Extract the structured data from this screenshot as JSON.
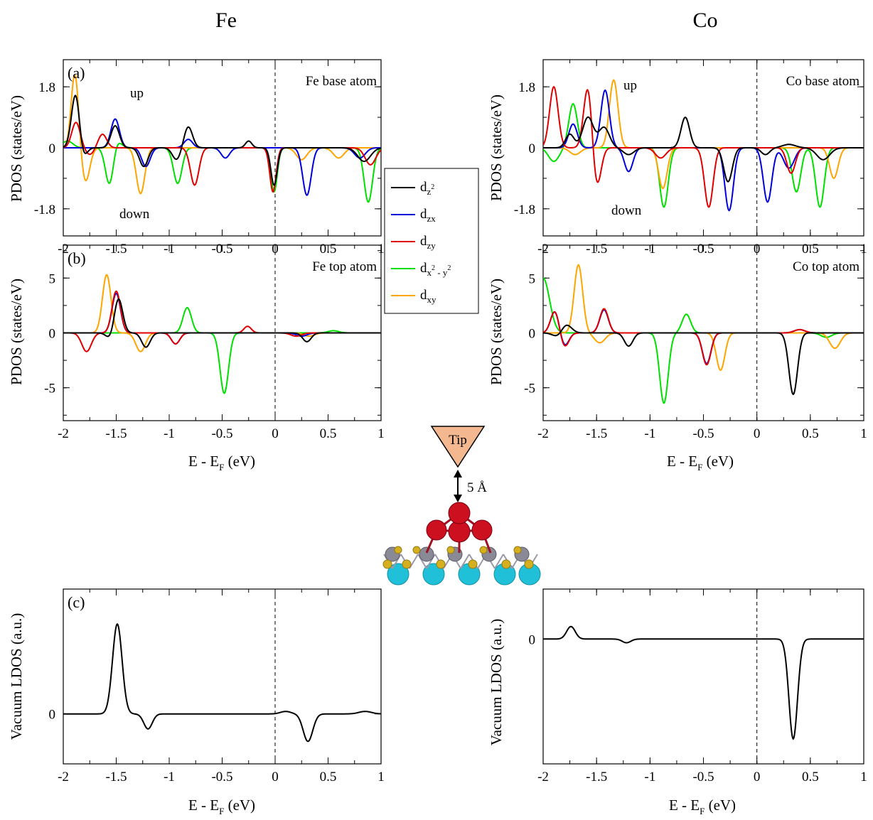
{
  "titles": {
    "fe": "Fe",
    "co": "Co"
  },
  "units": {
    "pdos_ylabel": "PDOS (states/eV)",
    "ldos_ylabel": "Vacuum LDOS (a.u.)",
    "xlabel_main": "E - E",
    "xlabel_sub": "F",
    "xlabel_unit": " (eV)"
  },
  "notes": {
    "up": "up",
    "down": "down",
    "tip": "Tip",
    "distance": "5 Å"
  },
  "legend": [
    {
      "main": "d",
      "sub": "z",
      "sup": "2",
      "color": "#000000"
    },
    {
      "main": "d",
      "sub": "zx",
      "color": "#0000dd"
    },
    {
      "main": "d",
      "sub": "zy",
      "color": "#e00000"
    },
    {
      "main": "d",
      "sub": "x",
      "sup": "2",
      "sub2": " - y",
      "sup2": "2",
      "color": "#00e000"
    },
    {
      "main": "d",
      "sub": "xy",
      "color": "#ffa500"
    }
  ],
  "colors": {
    "dz2": "#000000",
    "dzx": "#0000dd",
    "dzy": "#e00000",
    "dx2y2": "#00e000",
    "dxy": "#ffa500",
    "atom_o": "#cc1020",
    "atom_s": "#d4b020",
    "atom_m": "#8a8a96",
    "atom_sub": "#20c0d8",
    "tip": "#f4b890"
  },
  "chart_data": [
    {
      "id": "fe_a",
      "type": "line",
      "tag": "(a)",
      "atom_label": "Fe base atom",
      "xlim": [
        -2,
        1
      ],
      "ylim": [
        -2.6,
        2.6
      ],
      "yticks": [
        -1.8,
        0,
        1.8
      ],
      "yticklabels": [
        "-1.8",
        "0",
        "1.8"
      ],
      "xticks": [
        -2,
        -1.5,
        -1,
        -0.5,
        0,
        0.5,
        1
      ],
      "xticklabels": [
        "-2",
        "-1.5",
        "-1",
        "-0.5",
        "0",
        "0.5",
        "1"
      ],
      "series": [
        {
          "key": "dz2",
          "peaks": [
            [
              -1.88,
              1.75,
              0.04
            ],
            [
              -1.51,
              0.65,
              0.04
            ],
            [
              -0.82,
              0.62,
              0.04
            ],
            [
              -0.25,
              0.2,
              0.03
            ],
            [
              -1.83,
              -0.5,
              0.04
            ],
            [
              -1.24,
              -0.55,
              0.04
            ],
            [
              -0.93,
              -0.35,
              0.04
            ],
            [
              -0.01,
              -1.1,
              0.03
            ],
            [
              0.84,
              -0.4,
              0.06
            ]
          ]
        },
        {
          "key": "dzx",
          "peaks": [
            [
              -1.51,
              0.85,
              0.04
            ],
            [
              -0.82,
              0.25,
              0.04
            ],
            [
              -1.22,
              -0.55,
              0.04
            ],
            [
              -0.47,
              -0.3,
              0.04
            ],
            [
              0.3,
              -1.4,
              0.04
            ],
            [
              0.8,
              -0.3,
              0.05
            ]
          ]
        },
        {
          "key": "dzy",
          "peaks": [
            [
              -1.88,
              0.75,
              0.04
            ],
            [
              -1.63,
              0.4,
              0.04
            ],
            [
              -1.75,
              -0.2,
              0.04
            ],
            [
              -0.76,
              -1.1,
              0.04
            ],
            [
              -0.02,
              -1.3,
              0.03
            ],
            [
              0.9,
              -0.5,
              0.05
            ]
          ]
        },
        {
          "key": "dx2y2",
          "peaks": [
            [
              -1.53,
              0.5,
              0.05
            ],
            [
              -1.96,
              0.2,
              0.05
            ],
            [
              -1.56,
              -1.45,
              0.04
            ],
            [
              -0.92,
              -1.05,
              0.04
            ],
            [
              -0.01,
              -1.3,
              0.03
            ],
            [
              0.88,
              -1.6,
              0.04
            ]
          ]
        },
        {
          "key": "dxy",
          "peaks": [
            [
              -1.89,
              2.2,
              0.035
            ],
            [
              -1.79,
              -1.0,
              0.04
            ],
            [
              -1.27,
              -1.35,
              0.04
            ],
            [
              0.25,
              -0.35,
              0.05
            ],
            [
              0.6,
              -0.3,
              0.05
            ]
          ]
        }
      ]
    },
    {
      "id": "co_a",
      "type": "line",
      "atom_label": "Co base atom",
      "xlim": [
        -2,
        1
      ],
      "ylim": [
        -2.6,
        2.6
      ],
      "yticks": [
        -1.8,
        0,
        1.8
      ],
      "yticklabels": [
        "-1.8",
        "0",
        "1.8"
      ],
      "xticks": [
        -2,
        -1.5,
        -1,
        -0.5,
        0,
        0.5,
        1
      ],
      "xticklabels": [
        "-2",
        "-1.5",
        "-1",
        "-0.5",
        "0",
        "0.5",
        "1"
      ],
      "series": [
        {
          "key": "dz2",
          "peaks": [
            [
              -1.58,
              0.9,
              0.05
            ],
            [
              -1.43,
              0.6,
              0.05
            ],
            [
              -1.75,
              0.4,
              0.04
            ],
            [
              -0.67,
              0.9,
              0.04
            ],
            [
              0.3,
              0.1,
              0.06
            ],
            [
              -1.2,
              -0.2,
              0.05
            ],
            [
              -0.27,
              -1.0,
              0.04
            ],
            [
              0.08,
              -0.2,
              0.04
            ],
            [
              0.62,
              -0.35,
              0.06
            ]
          ]
        },
        {
          "key": "dzx",
          "peaks": [
            [
              -1.42,
              1.7,
              0.04
            ],
            [
              -1.72,
              0.7,
              0.04
            ],
            [
              -1.2,
              -0.7,
              0.04
            ],
            [
              -0.26,
              -1.85,
              0.04
            ],
            [
              0.1,
              -1.6,
              0.04
            ],
            [
              0.3,
              -0.6,
              0.05
            ]
          ]
        },
        {
          "key": "dzy",
          "peaks": [
            [
              -1.9,
              1.8,
              0.04
            ],
            [
              -1.58,
              1.85,
              0.04
            ],
            [
              -1.5,
              -1.2,
              0.04
            ],
            [
              -0.45,
              -1.75,
              0.04
            ],
            [
              0.32,
              -0.75,
              0.04
            ],
            [
              -0.9,
              -0.3,
              0.05
            ]
          ]
        },
        {
          "key": "dx2y2",
          "peaks": [
            [
              -1.72,
              1.3,
              0.04
            ],
            [
              -0.87,
              -1.75,
              0.04
            ],
            [
              0.37,
              -1.3,
              0.04
            ],
            [
              0.59,
              -1.75,
              0.04
            ],
            [
              -1.9,
              -0.4,
              0.05
            ]
          ]
        },
        {
          "key": "dxy",
          "peaks": [
            [
              -1.34,
              2.0,
              0.04
            ],
            [
              -0.88,
              -1.2,
              0.04
            ],
            [
              0.72,
              -0.9,
              0.04
            ],
            [
              -1.7,
              -0.2,
              0.05
            ]
          ]
        }
      ]
    },
    {
      "id": "fe_b",
      "type": "line",
      "tag": "(b)",
      "atom_label": "Fe top atom",
      "xlim": [
        -2,
        1
      ],
      "ylim": [
        -8,
        8
      ],
      "yticks": [
        -5,
        0,
        5
      ],
      "yticklabels": [
        "-5",
        "0",
        "5"
      ],
      "xticks": [
        -2,
        -1.5,
        -1,
        -0.5,
        0,
        0.5,
        1
      ],
      "xticklabels": [
        "-2",
        "-1.5",
        "-1",
        "-0.5",
        "0",
        "0.5",
        "1"
      ],
      "series": [
        {
          "key": "dz2",
          "peaks": [
            [
              -1.48,
              3.2,
              0.04
            ],
            [
              -1.22,
              -1.3,
              0.04
            ],
            [
              -1.55,
              -0.6,
              0.04
            ],
            [
              0.3,
              -0.8,
              0.04
            ]
          ]
        },
        {
          "key": "dzx",
          "peaks": [
            [
              -1.5,
              3.6,
              0.04
            ],
            [
              -0.94,
              -1.0,
              0.04
            ],
            [
              0.25,
              -0.3,
              0.05
            ]
          ]
        },
        {
          "key": "dzy",
          "peaks": [
            [
              -1.5,
              3.8,
              0.04
            ],
            [
              -1.78,
              -1.7,
              0.045
            ],
            [
              -0.94,
              -1.0,
              0.04
            ],
            [
              -0.26,
              0.6,
              0.035
            ],
            [
              0.2,
              -0.3,
              0.05
            ]
          ]
        },
        {
          "key": "dx2y2",
          "peaks": [
            [
              -0.83,
              2.3,
              0.04
            ],
            [
              -0.48,
              -5.5,
              0.04
            ],
            [
              0.55,
              0.2,
              0.05
            ]
          ]
        },
        {
          "key": "dxy",
          "peaks": [
            [
              -1.59,
              5.3,
              0.04
            ],
            [
              -1.27,
              -1.7,
              0.045
            ],
            [
              0.32,
              -0.3,
              0.05
            ]
          ]
        }
      ]
    },
    {
      "id": "co_b",
      "type": "line",
      "atom_label": "Co top atom",
      "xlim": [
        -2,
        1
      ],
      "ylim": [
        -8,
        8
      ],
      "yticks": [
        -5,
        0,
        5
      ],
      "yticklabels": [
        "-5",
        "0",
        "5"
      ],
      "xticks": [
        -2,
        -1.5,
        -1,
        -0.5,
        0,
        0.5,
        1
      ],
      "xticklabels": [
        "-2",
        "-1.5",
        "-1",
        "-0.5",
        "0",
        "0.5",
        "1"
      ],
      "series": [
        {
          "key": "dz2",
          "peaks": [
            [
              -1.79,
              0.9,
              0.05
            ],
            [
              -1.2,
              -1.2,
              0.04
            ],
            [
              -1.85,
              -0.5,
              0.05
            ],
            [
              0.34,
              -5.6,
              0.04
            ]
          ]
        },
        {
          "key": "dzx",
          "peaks": [
            [
              -1.89,
              2.0,
              0.04
            ],
            [
              -1.43,
              2.1,
              0.04
            ],
            [
              -1.8,
              -1.2,
              0.04
            ],
            [
              -0.47,
              -2.8,
              0.04
            ],
            [
              0.4,
              0.3,
              0.05
            ]
          ]
        },
        {
          "key": "dzy",
          "peaks": [
            [
              -1.89,
              2.0,
              0.04
            ],
            [
              -1.43,
              2.2,
              0.04
            ],
            [
              -1.8,
              -1.3,
              0.04
            ],
            [
              -0.47,
              -2.9,
              0.04
            ],
            [
              0.4,
              0.3,
              0.05
            ]
          ]
        },
        {
          "key": "dx2y2",
          "peaks": [
            [
              -2.0,
              5.0,
              0.06
            ],
            [
              -0.87,
              -6.4,
              0.04
            ],
            [
              -0.66,
              1.7,
              0.04
            ],
            [
              0.65,
              -0.4,
              0.05
            ]
          ]
        },
        {
          "key": "dxy",
          "peaks": [
            [
              -1.67,
              6.2,
              0.04
            ],
            [
              -1.47,
              -0.9,
              0.05
            ],
            [
              -0.34,
              -3.4,
              0.04
            ],
            [
              0.73,
              -1.4,
              0.05
            ]
          ]
        }
      ]
    },
    {
      "id": "fe_c",
      "type": "line",
      "tag": "(c)",
      "xlim": [
        -2,
        1
      ],
      "ylim": [
        -1.0,
        2.5
      ],
      "yticks": [
        0
      ],
      "yticklabels": [
        "0"
      ],
      "xticks": [
        -2,
        -1.5,
        -1,
        -0.5,
        0,
        0.5,
        1
      ],
      "xticklabels": [
        "-2",
        "-1.5",
        "-1",
        "-0.5",
        "0",
        "0.5",
        "1"
      ],
      "series": [
        {
          "key": "ldos",
          "peaks": [
            [
              -1.49,
              1.8,
              0.045
            ],
            [
              -1.2,
              -0.3,
              0.04
            ],
            [
              0.31,
              -0.55,
              0.045
            ],
            [
              0.1,
              0.05,
              0.05
            ],
            [
              0.85,
              0.05,
              0.06
            ]
          ]
        }
      ]
    },
    {
      "id": "co_c",
      "type": "line",
      "xlim": [
        -2,
        1
      ],
      "ylim": [
        -2.0,
        0.8
      ],
      "yticks": [
        0
      ],
      "yticklabels": [
        "0"
      ],
      "xticks": [
        -2,
        -1.5,
        -1,
        -0.5,
        0,
        0.5,
        1
      ],
      "xticklabels": [
        "-2",
        "-1.5",
        "-1",
        "-0.5",
        "0",
        "0.5",
        "1"
      ],
      "series": [
        {
          "key": "ldos",
          "peaks": [
            [
              -1.74,
              0.2,
              0.04
            ],
            [
              -1.22,
              -0.06,
              0.04
            ],
            [
              0.34,
              -1.6,
              0.04
            ]
          ]
        }
      ]
    }
  ]
}
